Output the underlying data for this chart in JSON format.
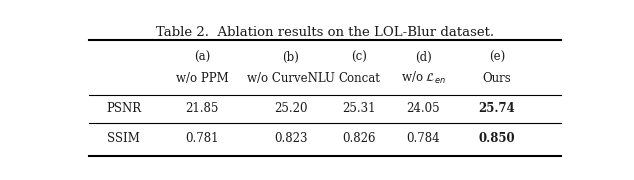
{
  "title": "Table 2.  Ablation results on the LOL-Blur dataset.",
  "col_headers_line1": [
    "(a)",
    "(b)",
    "(c)",
    "(d)",
    "(e)"
  ],
  "col_headers_line2": [
    "w/o PPM",
    "w/o CurveNLU",
    "Concat",
    "w/o \\mathcal{L}_{en}",
    "Ours"
  ],
  "row_labels": [
    "PSNR",
    "SSIM"
  ],
  "data": [
    [
      "21.85",
      "25.20",
      "25.31",
      "24.05",
      "25.74"
    ],
    [
      "0.781",
      "0.823",
      "0.826",
      "0.784",
      "0.850"
    ]
  ],
  "bold_cols": [
    4,
    4
  ],
  "text_color": "#1a1a1a"
}
